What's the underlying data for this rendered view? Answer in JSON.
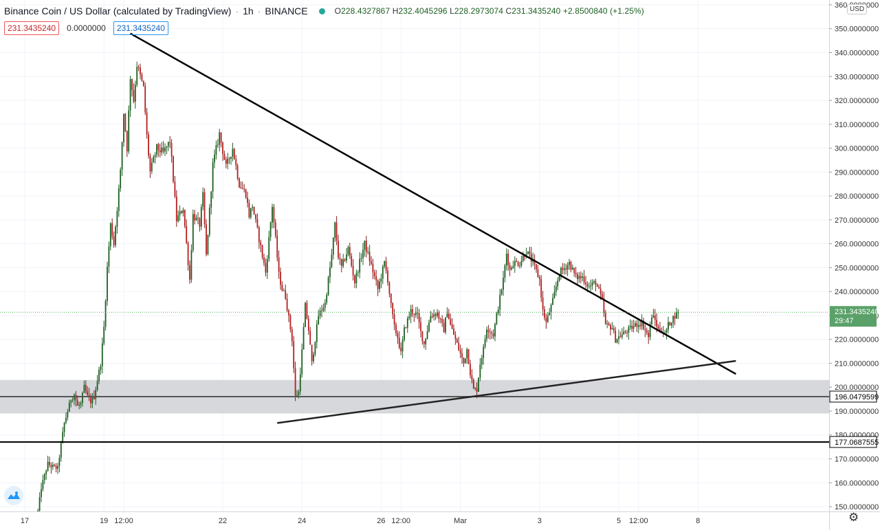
{
  "header": {
    "title": "Binance Coin / US Dollar (calculated by TradingView)",
    "interval": "1h",
    "exchange": "BINANCE",
    "o_label": "O",
    "o_value": "228.4327867",
    "h_label": "H",
    "h_value": "232.4045296",
    "l_label": "L",
    "l_value": "228.2973074",
    "c_label": "C",
    "c_value": "231.3435240",
    "change": "+2.8500840 (+1.25%)"
  },
  "badges": {
    "bid": "231.3435240",
    "spread": "0.0000000",
    "ask": "231.3435240"
  },
  "currency_button": "USD",
  "colors": {
    "up": "#26a69a",
    "down": "#ef5350",
    "candle_body_up": "#e8f5e9",
    "trendline": "#000000",
    "support_zone": "#d5d6da",
    "price_label": "#4caf50"
  },
  "chart_data": {
    "type": "candlestick",
    "y_axis": {
      "range": [
        148,
        362
      ],
      "tick_labels": [
        "360.0000000",
        "350.0000000",
        "340.0000000",
        "330.0000000",
        "320.0000000",
        "310.0000000",
        "300.0000000",
        "290.0000000",
        "280.0000000",
        "270.0000000",
        "260.0000000",
        "250.0000000",
        "240.0000000",
        "230.0000000",
        "220.0000000",
        "210.0000000",
        "200.0000000",
        "190.0000000",
        "180.0000000",
        "170.0000000",
        "160.0000000",
        "150.0000000"
      ],
      "tick_values": [
        360,
        350,
        340,
        330,
        320,
        310,
        300,
        290,
        280,
        270,
        260,
        250,
        240,
        230,
        220,
        210,
        200,
        190,
        180,
        170,
        160,
        150
      ]
    },
    "x_axis": {
      "tick_labels": [
        "17",
        "19",
        "12:00",
        "22",
        "24",
        "26",
        "12:00",
        "Mar",
        "3",
        "5",
        "12:00",
        "8"
      ],
      "tick_times_hours": [
        0,
        48,
        60,
        120,
        168,
        216,
        228,
        264,
        312,
        360,
        372,
        408
      ]
    },
    "grid": true,
    "last_price": {
      "value": 231.343524,
      "label": "231.3435240",
      "countdown": "29:47"
    },
    "horizontal_levels": [
      {
        "value": 196.0479599,
        "label": "196.0479599",
        "style": "gray"
      },
      {
        "value": 177.0687555,
        "label": "177.0687555",
        "style": "black"
      }
    ],
    "support_zone": [
      189,
      203
    ],
    "trendlines": [
      {
        "name": "descending",
        "from": {
          "t": 64,
          "price": 348
        },
        "to": {
          "t": 431,
          "price": 205.5
        }
      },
      {
        "name": "ascending",
        "from": {
          "t": 153,
          "price": 185
        },
        "to": {
          "t": 431,
          "price": 211
        }
      }
    ],
    "close_path": [
      [
        8,
        148
      ],
      [
        10,
        158
      ],
      [
        14,
        168
      ],
      [
        16,
        167
      ],
      [
        20,
        166
      ],
      [
        22,
        176
      ],
      [
        24,
        185
      ],
      [
        26,
        190
      ],
      [
        28,
        195
      ],
      [
        30,
        197
      ],
      [
        32,
        192
      ],
      [
        34,
        193
      ],
      [
        36,
        200
      ],
      [
        38,
        196
      ],
      [
        40,
        194
      ],
      [
        42,
        196
      ],
      [
        46,
        210
      ],
      [
        48,
        225
      ],
      [
        50,
        250
      ],
      [
        52,
        268
      ],
      [
        54,
        260
      ],
      [
        58,
        290
      ],
      [
        60,
        315
      ],
      [
        62,
        300
      ],
      [
        64,
        330
      ],
      [
        66,
        320
      ],
      [
        68,
        335
      ],
      [
        70,
        330
      ],
      [
        72,
        325
      ],
      [
        74,
        305
      ],
      [
        76,
        290
      ],
      [
        80,
        300
      ],
      [
        84,
        298
      ],
      [
        88,
        303
      ],
      [
        90,
        287
      ],
      [
        92,
        270
      ],
      [
        96,
        275
      ],
      [
        100,
        245
      ],
      [
        102,
        272
      ],
      [
        106,
        268
      ],
      [
        108,
        280
      ],
      [
        110,
        255
      ],
      [
        114,
        293
      ],
      [
        118,
        306
      ],
      [
        122,
        292
      ],
      [
        126,
        300
      ],
      [
        130,
        285
      ],
      [
        134,
        281
      ],
      [
        136,
        272
      ],
      [
        138,
        276
      ],
      [
        142,
        262
      ],
      [
        146,
        248
      ],
      [
        150,
        276
      ],
      [
        152,
        262
      ],
      [
        154,
        247
      ],
      [
        156,
        241
      ],
      [
        158,
        238
      ],
      [
        162,
        220
      ],
      [
        164,
        196
      ],
      [
        166,
        198
      ],
      [
        168,
        215
      ],
      [
        170,
        234
      ],
      [
        172,
        224
      ],
      [
        174,
        210
      ],
      [
        178,
        230
      ],
      [
        182,
        235
      ],
      [
        184,
        245
      ],
      [
        186,
        255
      ],
      [
        188,
        268
      ],
      [
        190,
        255
      ],
      [
        192,
        250
      ],
      [
        196,
        258
      ],
      [
        200,
        244
      ],
      [
        204,
        255
      ],
      [
        206,
        260
      ],
      [
        210,
        251
      ],
      [
        214,
        241
      ],
      [
        218,
        252
      ],
      [
        220,
        245
      ],
      [
        222,
        234
      ],
      [
        224,
        225
      ],
      [
        226,
        221
      ],
      [
        228,
        214
      ],
      [
        230,
        224
      ],
      [
        234,
        232
      ],
      [
        236,
        231
      ],
      [
        238,
        230
      ],
      [
        240,
        223
      ],
      [
        242,
        218
      ],
      [
        246,
        230
      ],
      [
        250,
        231
      ],
      [
        254,
        224
      ],
      [
        256,
        232
      ],
      [
        258,
        226
      ],
      [
        260,
        222
      ],
      [
        262,
        218
      ],
      [
        266,
        210
      ],
      [
        268,
        216
      ],
      [
        270,
        206
      ],
      [
        272,
        199
      ],
      [
        274,
        199
      ],
      [
        276,
        210
      ],
      [
        278,
        216
      ],
      [
        280,
        225
      ],
      [
        284,
        222
      ],
      [
        286,
        230
      ],
      [
        290,
        245
      ],
      [
        292,
        256
      ],
      [
        294,
        249
      ],
      [
        296,
        252
      ],
      [
        300,
        252
      ],
      [
        304,
        257
      ],
      [
        308,
        252
      ],
      [
        312,
        245
      ],
      [
        314,
        232
      ],
      [
        316,
        227
      ],
      [
        320,
        236
      ],
      [
        324,
        248
      ],
      [
        326,
        249
      ],
      [
        330,
        252
      ],
      [
        334,
        246
      ],
      [
        338,
        246
      ],
      [
        342,
        242
      ],
      [
        346,
        244
      ],
      [
        350,
        236
      ],
      [
        352,
        226
      ],
      [
        356,
        225
      ],
      [
        358,
        220
      ],
      [
        362,
        222
      ],
      [
        366,
        224
      ],
      [
        370,
        226
      ],
      [
        374,
        227
      ],
      [
        378,
        221
      ],
      [
        380,
        230
      ],
      [
        382,
        228
      ],
      [
        384,
        224
      ],
      [
        386,
        224
      ],
      [
        388,
        222
      ],
      [
        390,
        226
      ],
      [
        392,
        228
      ],
      [
        394,
        230
      ],
      [
        396,
        231
      ]
    ]
  }
}
